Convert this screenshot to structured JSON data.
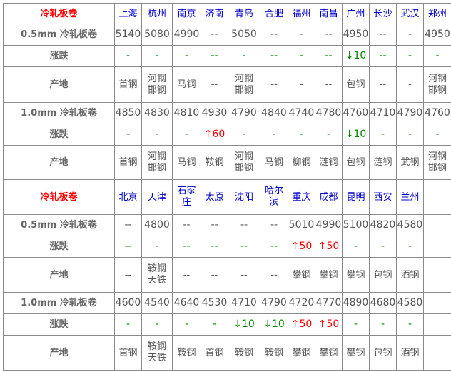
{
  "sections": [
    {
      "title": "冷轧板卷",
      "cities": [
        "上海",
        "杭州",
        "南京",
        "济南",
        "青岛",
        "合肥",
        "福州",
        "南昌",
        "广州",
        "长沙",
        "武汉",
        "郑州"
      ],
      "rows": [
        {
          "label": "0.5mm 冷轧板卷",
          "type": "price",
          "values": [
            "5140",
            "5080",
            "4990",
            "--",
            "5050",
            "--",
            "-",
            "--",
            "4950",
            "--",
            "-",
            "4950"
          ]
        },
        {
          "label": "涨跌",
          "type": "change",
          "values": [
            "-",
            "-",
            "-",
            "--",
            "-",
            "--",
            "-",
            "--",
            "↓10",
            "--",
            "-",
            "-"
          ]
        },
        {
          "label": "产地",
          "type": "origin",
          "values": [
            "首钢",
            "河钢 邯钢",
            "马钢",
            "--",
            "河钢 邯钢",
            "--",
            "-",
            "--",
            "包钢",
            "--",
            "-",
            "河钢 邯钢"
          ]
        },
        {
          "label": "1.0mm 冷轧板卷",
          "type": "price",
          "values": [
            "4850",
            "4830",
            "4810",
            "4930",
            "4790",
            "4840",
            "4740",
            "4780",
            "4760",
            "4710",
            "4790",
            "4760"
          ]
        },
        {
          "label": "涨跌",
          "type": "change",
          "values": [
            "-",
            "-",
            "-",
            "↑60",
            "-",
            "-",
            "-",
            "-",
            "↓10",
            "-",
            "-",
            "-"
          ]
        },
        {
          "label": "产地",
          "type": "origin",
          "values": [
            "首钢",
            "河钢 邯钢",
            "马钢",
            "鞍钢",
            "河钢 邯钢",
            "马钢",
            "柳钢",
            "涟钢",
            "包钢",
            "涟钢",
            "武钢",
            "河钢 邯钢"
          ]
        }
      ]
    },
    {
      "title": "冷轧板卷",
      "cities": [
        "北京",
        "天津",
        "石家庄",
        "太原",
        "沈阳",
        "哈尔滨",
        "重庆",
        "成都",
        "昆明",
        "西安",
        "兰州",
        ""
      ],
      "rows": [
        {
          "label": "0.5mm 冷轧板卷",
          "type": "price",
          "values": [
            "--",
            "4800",
            "--",
            "--",
            "--",
            "--",
            "5010",
            "4990",
            "5100",
            "4820",
            "4580",
            ""
          ]
        },
        {
          "label": "涨跌",
          "type": "change",
          "values": [
            "--",
            "-",
            "--",
            "--",
            "--",
            "--",
            "↑50",
            "↑50",
            "-",
            "-",
            "-",
            ""
          ]
        },
        {
          "label": "产地",
          "type": "origin",
          "values": [
            "--",
            "鞍钢 天铁",
            "--",
            "--",
            "--",
            "--",
            "攀钢",
            "攀钢",
            "攀钢",
            "包钢",
            "酒钢",
            ""
          ]
        },
        {
          "label": "1.0mm 冷轧板卷",
          "type": "price",
          "values": [
            "4600",
            "4540",
            "4640",
            "4530",
            "4710",
            "4790",
            "4720",
            "4770",
            "4890",
            "4680",
            "4580",
            ""
          ]
        },
        {
          "label": "涨跌",
          "type": "change",
          "values": [
            "-",
            "-",
            "-",
            "-",
            "↓10",
            "↓10",
            "↑50",
            "↑50",
            "-",
            "-",
            "-",
            ""
          ]
        },
        {
          "label": "产地",
          "type": "origin",
          "values": [
            "首钢",
            "鞍钢 天铁",
            "鞍钢",
            "首钢",
            "鞍钢",
            "鞍钢",
            "攀钢",
            "攀钢",
            "攀钢",
            "包钢",
            "酒钢",
            ""
          ]
        }
      ]
    }
  ],
  "colors": {
    "title": "#ff0000",
    "city": "#0000cc",
    "up": "#ff0000",
    "down": "#008800",
    "flat": "#008800"
  }
}
